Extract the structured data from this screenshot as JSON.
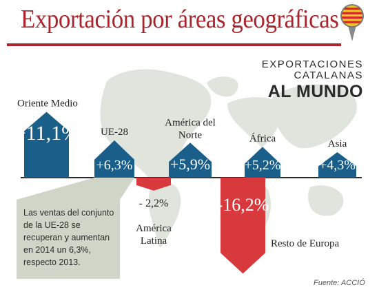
{
  "title": "Exportación por áreas geográficas",
  "heading": {
    "line1": "EXPORTACIONES",
    "line2": "CATALANAS",
    "line3": "AL MUNDO"
  },
  "note": "Las ventas del conjunto de la UE-28 se recuperan y aumentan en 2014 un 6,3%, respecto 2013.",
  "source": "Fuente: ACCIÓ",
  "colors": {
    "title": "#a8252b",
    "positive": "#1a5f8a",
    "negative": "#d7393c",
    "map": "#dfe5dc",
    "note_bg": "#cfd6c8"
  },
  "chart_data": {
    "type": "bar",
    "unit": "%",
    "categories": [
      "Oriente Medio",
      "UE-28",
      "América Latina",
      "América del Norte",
      "Resto de Europa",
      "África",
      "Asia"
    ],
    "category_labels": [
      [
        "Oriente Medio"
      ],
      [
        "UE-28"
      ],
      [
        "América",
        "Latina"
      ],
      [
        "América del",
        "Norte"
      ],
      [
        "Resto de Europa"
      ],
      [
        "África"
      ],
      [
        "Asia"
      ]
    ],
    "values": [
      11.1,
      6.3,
      -2.2,
      5.9,
      -16.2,
      5.2,
      4.3
    ],
    "value_labels": [
      "+11,1%",
      "+6,3%",
      "- 2,2%",
      "+5,9%",
      "-16,2%",
      "+5,2%",
      "+4,3%"
    ]
  }
}
